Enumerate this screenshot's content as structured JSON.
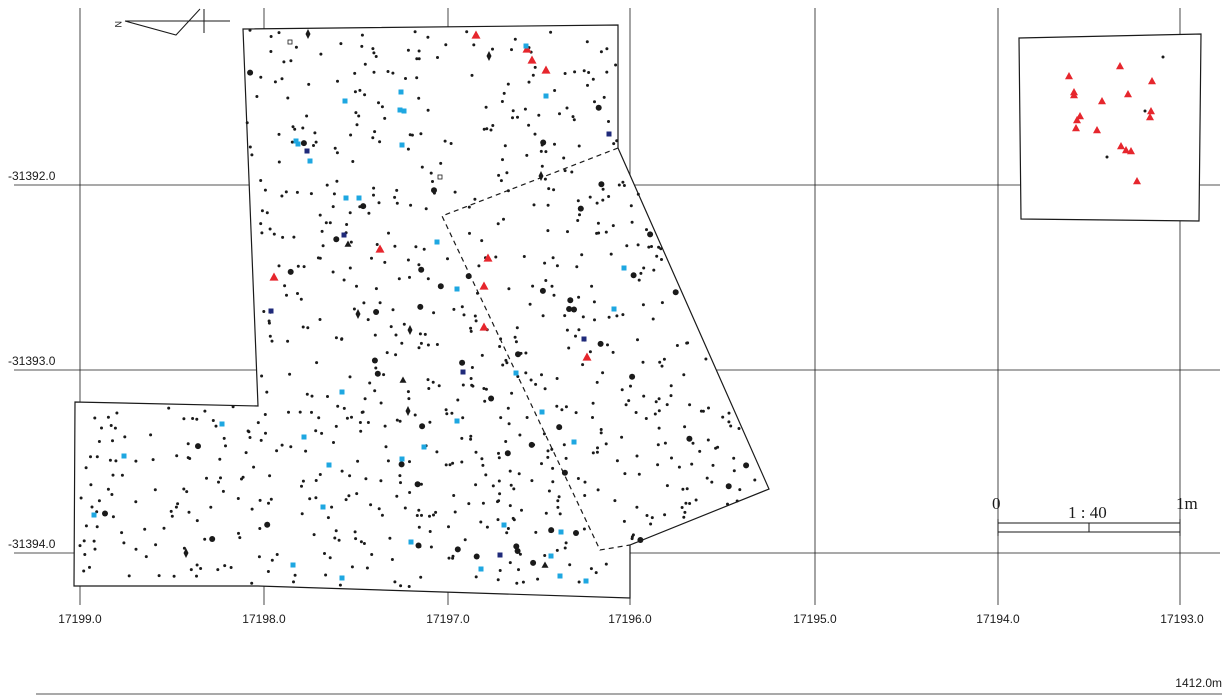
{
  "grid": {
    "x_labels": [
      "17199.0",
      "17198.0",
      "17197.0",
      "17196.0",
      "17195.0",
      "17194.0",
      "17193.0"
    ],
    "y_labels": [
      "-31392.0",
      "-31393.0",
      "-31394.0"
    ]
  },
  "scale_bar": {
    "left_label": "0",
    "ratio_label": "1 : 40",
    "right_label": "1m"
  },
  "elevation_label": "1412.0m",
  "north_arrow_label": "N",
  "colors": {
    "artifact_dot": "#1a1a1a",
    "red_triangle": "#e6262d",
    "light_blue_square": "#1ea7e1",
    "dark_blue_square": "#1f2a7a",
    "grid_line": "#1a1a1a"
  },
  "symbols": {
    "red_triangle": "red-triangle-marker",
    "light_blue_square": "light-blue-square-marker",
    "dark_blue_square": "dark-blue-square-marker",
    "black_diamond": "black-diamond-marker",
    "black_triangle": "black-triangle-marker",
    "open_square": "open-square-marker",
    "small_dot": "small-dot-marker",
    "large_dot": "large-dot-marker"
  }
}
